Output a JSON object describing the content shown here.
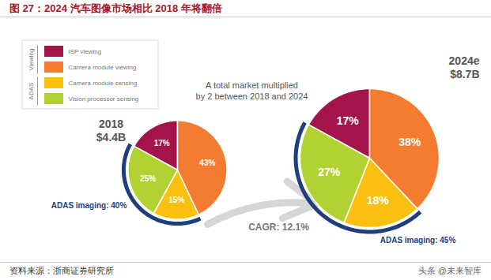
{
  "chart_data": {
    "type": "pie",
    "title": "图 27：2024 汽车图像市场相比 2018 年将翻倍",
    "categories": [
      "ISP viewing",
      "Camera module viewing",
      "Camera module sensing",
      "Vision processor sensing"
    ],
    "colors": [
      "#a3144a",
      "#f47c30",
      "#fbbf10",
      "#b2d234"
    ],
    "legend": "top-left",
    "legend_groups": [
      {
        "name": "Viewing",
        "categories": [
          "ISP viewing",
          "Camera module viewing"
        ]
      },
      {
        "name": "ADAS",
        "categories": [
          "Camera module sensing",
          "Vision processor sensing"
        ]
      }
    ],
    "data_labels": true,
    "series": [
      {
        "name": "2018",
        "total": 4.4,
        "total_label": "$4.4B",
        "values": [
          17,
          43,
          15,
          25
        ],
        "value_labels": [
          "17%",
          "43%",
          "15%",
          "25%"
        ],
        "adas_imaging": 40,
        "adas_imaging_label": "ADAS imaging: 40%"
      },
      {
        "name": "2024e",
        "total": 8.7,
        "total_label": "$8.7B",
        "values": [
          17,
          38,
          18,
          27
        ],
        "value_labels": [
          "17%",
          "38%",
          "18%",
          "27%"
        ],
        "adas_imaging": 45,
        "adas_imaging_label": "ADAS imaging: 45%"
      }
    ],
    "annotations": [
      "A total market multiplied",
      "by 2 between 2018 and 2024"
    ],
    "cagr_label": "CAGR: 12.1%",
    "source": "资料来源：浙商证券研究所",
    "watermark": "头条 @未来智库"
  }
}
